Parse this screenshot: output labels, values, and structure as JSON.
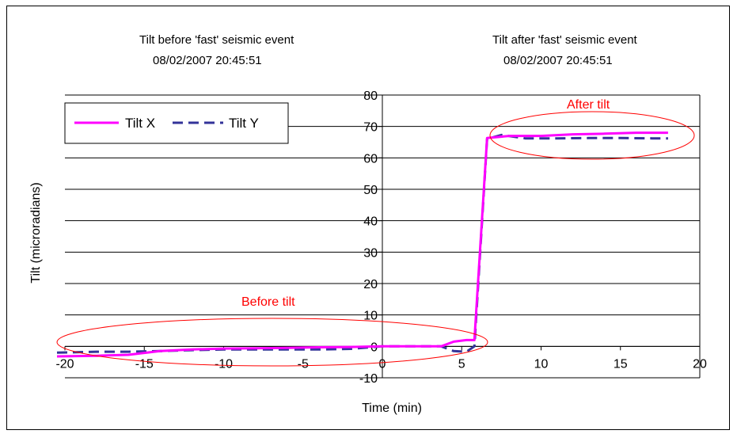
{
  "chart_data": {
    "type": "line",
    "xlabel": "Time (min)",
    "ylabel": "Tilt (microradians)",
    "xlim": [
      -20,
      20
    ],
    "ylim": [
      -10,
      80
    ],
    "xticks": [
      -20,
      -15,
      -10,
      -5,
      0,
      5,
      10,
      15,
      20
    ],
    "yticks": [
      -10,
      0,
      10,
      20,
      30,
      40,
      50,
      60,
      70,
      80
    ],
    "grid": "horizontal",
    "legend": "top-left",
    "annotations": {
      "before_title": "Tilt before 'fast' seismic event",
      "before_time": "08/02/2007 20:45:51",
      "after_title": "Tilt after 'fast' seismic event",
      "after_time": "08/02/2007 20:45:51",
      "before_label": "Before tilt",
      "after_label": "After tilt"
    },
    "series": [
      {
        "name": "Tilt X",
        "color": "#ff00ff",
        "dash": "solid",
        "x": [
          -20.5,
          -18,
          -16,
          -14,
          -12,
          -10,
          -8,
          -6,
          -4,
          -2,
          0,
          2,
          3.7,
          4.5,
          5.3,
          5.8,
          6.6,
          8,
          10,
          12,
          14,
          16,
          18
        ],
        "y": [
          -3.2,
          -3,
          -2.7,
          -1.5,
          -1,
          -0.7,
          -0.6,
          -0.5,
          -0.3,
          -0.2,
          0,
          0,
          0,
          1.5,
          2,
          2,
          66.3,
          67,
          67,
          67.5,
          67.7,
          68,
          68
        ]
      },
      {
        "name": "Tilt Y",
        "color": "#333399",
        "dash": "dashed",
        "x": [
          -20.5,
          -18,
          -16,
          -14,
          -12,
          -10,
          -8,
          -6,
          -4,
          -2,
          0,
          2,
          3.7,
          4.5,
          5.3,
          5.8,
          6.6,
          7.5,
          9,
          11,
          13,
          15,
          17,
          18
        ],
        "y": [
          -2,
          -1.7,
          -1.7,
          -1.5,
          -1.2,
          -1,
          -1,
          -1,
          -1,
          -0.8,
          0,
          0,
          0,
          -1.5,
          -1.7,
          0,
          66,
          67.3,
          66.2,
          66.2,
          66.3,
          66.3,
          66.2,
          66.2
        ]
      }
    ]
  }
}
